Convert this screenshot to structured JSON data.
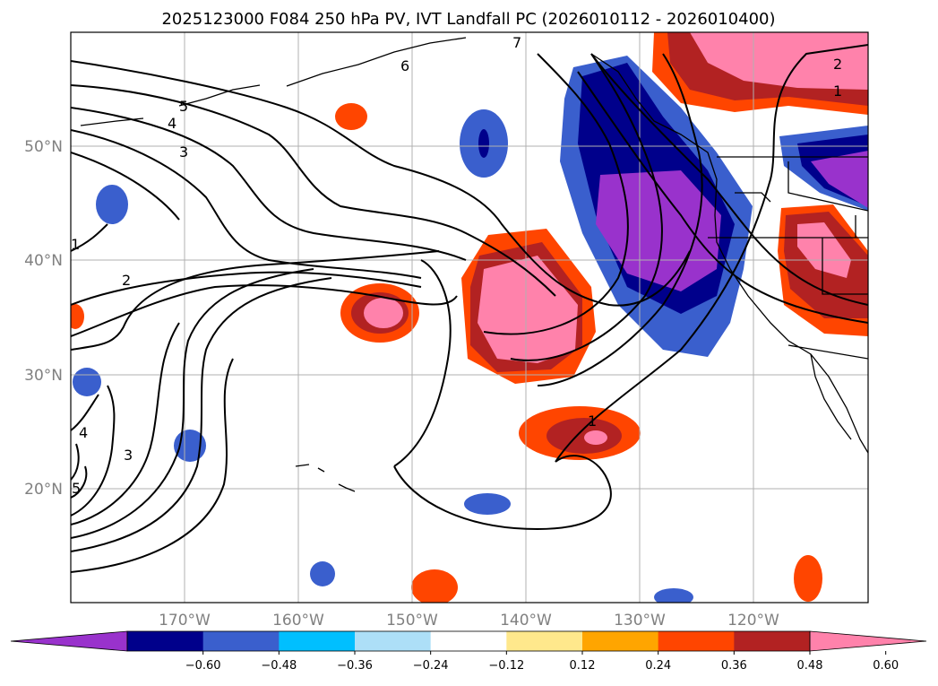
{
  "chart_data": {
    "type": "map-contour",
    "title": "2025123000 F084 250 hPa PV, IVT Landfall PC (2026010112 - 2026010400)",
    "extent": {
      "lon": [
        -180,
        -110
      ],
      "lat": [
        10,
        60
      ]
    },
    "lon_ticks": [
      -170,
      -160,
      -150,
      -140,
      -130,
      -120
    ],
    "lon_tick_labels": [
      "170°W",
      "160°W",
      "150°W",
      "140°W",
      "130°W",
      "120°W"
    ],
    "lat_ticks": [
      20,
      30,
      40,
      50
    ],
    "lat_tick_labels": [
      "20°N",
      "30°N",
      "40°N",
      "50°N"
    ],
    "gridlines": true,
    "colorbar": {
      "orientation": "horizontal",
      "extend": "both",
      "ticks": [
        -0.6,
        -0.48,
        -0.36,
        -0.24,
        -0.12,
        0.12,
        0.24,
        0.36,
        0.48,
        0.6
      ],
      "tick_labels": [
        "−0.60",
        "−0.48",
        "−0.36",
        "−0.24",
        "−0.12",
        "0.12",
        "0.24",
        "0.36",
        "0.48",
        "0.60"
      ],
      "colors": [
        "#9932CC",
        "#00008B",
        "#3A5FCD",
        "#00BFFF",
        "#ADDFF7",
        "#FFFFFF",
        "#FFE88C",
        "#FFA500",
        "#FF4500",
        "#B22222",
        "#FF82AB"
      ]
    },
    "pv_contour_labels": [
      "1",
      "2",
      "3",
      "4",
      "5",
      "6",
      "7"
    ]
  }
}
